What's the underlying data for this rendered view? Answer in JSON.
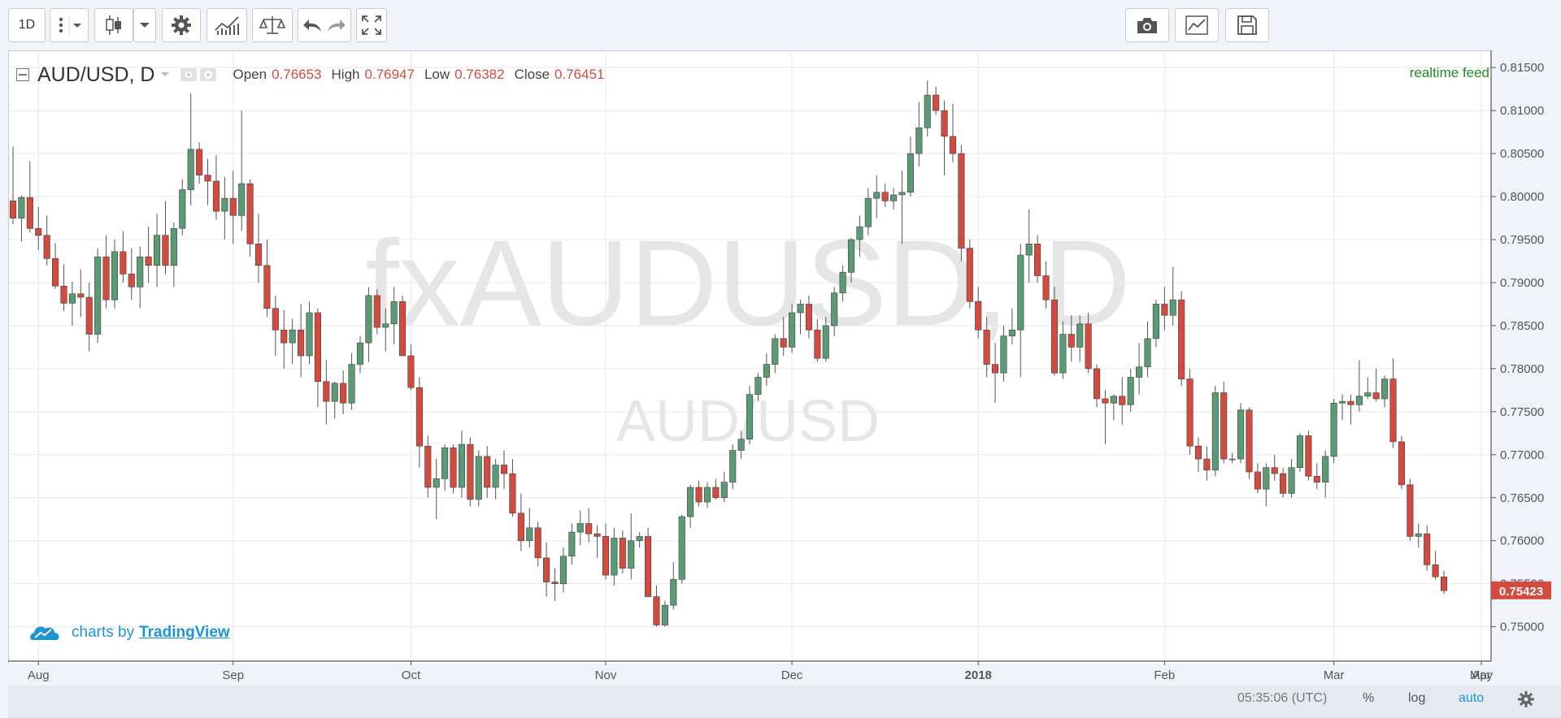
{
  "toolbar": {
    "interval_label": "1D"
  },
  "legend": {
    "symbol": "AUD/USD, D",
    "open_label": "Open",
    "open_value": "0.76653",
    "high_label": "High",
    "high_value": "0.76947",
    "low_label": "Low",
    "low_value": "0.76382",
    "close_label": "Close",
    "close_value": "0.76451"
  },
  "feed_label": "realtime feed",
  "watermark": {
    "line1": "fxAUDUSD, D",
    "line2": "AUD/USD"
  },
  "branding": {
    "prefix": "charts by",
    "link": "TradingView"
  },
  "status_bar": {
    "clock": "05:35:06 (UTC)",
    "percent": "%",
    "log": "log",
    "auto": "auto"
  },
  "colors": {
    "up": "#5b9a74",
    "down": "#d34b3f",
    "watermark": "#e6e6e6",
    "feed": "#1f8f1f",
    "link": "#1e95d3"
  },
  "chart_data": {
    "type": "candlestick",
    "title": "AUD/USD, D",
    "ylim": [
      0.746,
      0.817
    ],
    "y_ticks": [
      "0.75000",
      "0.75500",
      "0.76000",
      "0.76500",
      "0.77000",
      "0.77500",
      "0.78000",
      "0.78500",
      "0.79000",
      "0.79500",
      "0.80000",
      "0.80500",
      "0.81000",
      "0.81500"
    ],
    "x_ticks": [
      "Aug",
      "Sep",
      "Oct",
      "Nov",
      "Dec",
      "2018",
      "Feb",
      "Mar",
      "Apr",
      "May"
    ],
    "last_price": "0.75423",
    "candles": [
      [
        0.7995,
        0.8058,
        0.7968,
        0.7975
      ],
      [
        0.7975,
        0.8001,
        0.7948,
        0.7999
      ],
      [
        0.7999,
        0.8041,
        0.7958,
        0.7963
      ],
      [
        0.7963,
        0.7988,
        0.7938,
        0.7955
      ],
      [
        0.7955,
        0.7978,
        0.792,
        0.7928
      ],
      [
        0.7928,
        0.7946,
        0.7893,
        0.7896
      ],
      [
        0.7896,
        0.7921,
        0.7867,
        0.7876
      ],
      [
        0.7876,
        0.7901,
        0.785,
        0.7887
      ],
      [
        0.7887,
        0.7915,
        0.786,
        0.7883
      ],
      [
        0.7883,
        0.79,
        0.782,
        0.784
      ],
      [
        0.784,
        0.794,
        0.783,
        0.793
      ],
      [
        0.793,
        0.7955,
        0.787,
        0.788
      ],
      [
        0.788,
        0.795,
        0.787,
        0.7936
      ],
      [
        0.7936,
        0.796,
        0.79,
        0.791
      ],
      [
        0.791,
        0.794,
        0.788,
        0.7895
      ],
      [
        0.7895,
        0.7942,
        0.787,
        0.793
      ],
      [
        0.793,
        0.7965,
        0.79,
        0.792
      ],
      [
        0.792,
        0.798,
        0.7895,
        0.7955
      ],
      [
        0.7955,
        0.7995,
        0.791,
        0.792
      ],
      [
        0.792,
        0.797,
        0.7895,
        0.7963
      ],
      [
        0.7963,
        0.802,
        0.7955,
        0.8008
      ],
      [
        0.8008,
        0.812,
        0.799,
        0.8055
      ],
      [
        0.8055,
        0.8063,
        0.8015,
        0.8025
      ],
      [
        0.8025,
        0.8044,
        0.799,
        0.8018
      ],
      [
        0.8018,
        0.8048,
        0.7973,
        0.7983
      ],
      [
        0.7983,
        0.8023,
        0.795,
        0.7998
      ],
      [
        0.7998,
        0.803,
        0.7945,
        0.7978
      ],
      [
        0.7978,
        0.81,
        0.796,
        0.8015
      ],
      [
        0.8015,
        0.802,
        0.793,
        0.7945
      ],
      [
        0.7945,
        0.798,
        0.79,
        0.792
      ],
      [
        0.792,
        0.795,
        0.786,
        0.787
      ],
      [
        0.787,
        0.7885,
        0.7815,
        0.7845
      ],
      [
        0.7845,
        0.7868,
        0.78,
        0.783
      ],
      [
        0.783,
        0.7858,
        0.7805,
        0.7845
      ],
      [
        0.7845,
        0.7875,
        0.779,
        0.7815
      ],
      [
        0.7815,
        0.7878,
        0.7805,
        0.7865
      ],
      [
        0.7865,
        0.787,
        0.7755,
        0.7785
      ],
      [
        0.7785,
        0.781,
        0.7735,
        0.7762
      ],
      [
        0.7762,
        0.7785,
        0.7742,
        0.7783
      ],
      [
        0.7783,
        0.7798,
        0.7747,
        0.776
      ],
      [
        0.776,
        0.7818,
        0.7752,
        0.7805
      ],
      [
        0.7805,
        0.7838,
        0.7795,
        0.783
      ],
      [
        0.783,
        0.7895,
        0.7808,
        0.7885
      ],
      [
        0.7885,
        0.7892,
        0.784,
        0.7848
      ],
      [
        0.7848,
        0.787,
        0.782,
        0.7852
      ],
      [
        0.7852,
        0.7895,
        0.7828,
        0.7878
      ],
      [
        0.7878,
        0.7885,
        0.7815,
        0.7815
      ],
      [
        0.7815,
        0.7828,
        0.7775,
        0.7778
      ],
      [
        0.7778,
        0.779,
        0.7685,
        0.771
      ],
      [
        0.771,
        0.7722,
        0.765,
        0.7662
      ],
      [
        0.7662,
        0.7695,
        0.7625,
        0.7672
      ],
      [
        0.7672,
        0.7712,
        0.7658,
        0.7708
      ],
      [
        0.7708,
        0.7712,
        0.7655,
        0.7662
      ],
      [
        0.7662,
        0.7728,
        0.765,
        0.7712
      ],
      [
        0.7712,
        0.772,
        0.764,
        0.7648
      ],
      [
        0.7648,
        0.7705,
        0.764,
        0.7698
      ],
      [
        0.7698,
        0.771,
        0.765,
        0.7662
      ],
      [
        0.7662,
        0.7695,
        0.7648,
        0.7688
      ],
      [
        0.7688,
        0.7705,
        0.766,
        0.7678
      ],
      [
        0.7678,
        0.7695,
        0.7628,
        0.7632
      ],
      [
        0.7632,
        0.7655,
        0.7588,
        0.76
      ],
      [
        0.76,
        0.7638,
        0.7592,
        0.7615
      ],
      [
        0.7615,
        0.7622,
        0.757,
        0.758
      ],
      [
        0.758,
        0.7598,
        0.7535,
        0.7552
      ],
      [
        0.7552,
        0.7568,
        0.753,
        0.755
      ],
      [
        0.755,
        0.7592,
        0.754,
        0.7582
      ],
      [
        0.7582,
        0.762,
        0.7572,
        0.761
      ],
      [
        0.761,
        0.7635,
        0.7595,
        0.762
      ],
      [
        0.762,
        0.7638,
        0.7598,
        0.7608
      ],
      [
        0.7608,
        0.7618,
        0.758,
        0.7605
      ],
      [
        0.7605,
        0.762,
        0.7555,
        0.756
      ],
      [
        0.756,
        0.7615,
        0.7548,
        0.7603
      ],
      [
        0.7603,
        0.7612,
        0.7562,
        0.7568
      ],
      [
        0.7568,
        0.7632,
        0.7555,
        0.76
      ],
      [
        0.76,
        0.761,
        0.7592,
        0.7605
      ],
      [
        0.7605,
        0.7615,
        0.7535,
        0.7535
      ],
      [
        0.7535,
        0.7548,
        0.75,
        0.7502
      ],
      [
        0.7502,
        0.753,
        0.75,
        0.7525
      ],
      [
        0.7525,
        0.7575,
        0.752,
        0.7555
      ],
      [
        0.7555,
        0.763,
        0.755,
        0.7628
      ],
      [
        0.7628,
        0.7665,
        0.7615,
        0.7662
      ],
      [
        0.7662,
        0.767,
        0.764,
        0.7645
      ],
      [
        0.7645,
        0.7668,
        0.7638,
        0.7662
      ],
      [
        0.7662,
        0.7672,
        0.7648,
        0.765
      ],
      [
        0.765,
        0.768,
        0.7645,
        0.7668
      ],
      [
        0.7668,
        0.7712,
        0.766,
        0.7705
      ],
      [
        0.7705,
        0.7728,
        0.7695,
        0.7718
      ],
      [
        0.7718,
        0.778,
        0.7712,
        0.777
      ],
      [
        0.777,
        0.7795,
        0.7762,
        0.779
      ],
      [
        0.779,
        0.7818,
        0.778,
        0.7805
      ],
      [
        0.7805,
        0.784,
        0.7795,
        0.7835
      ],
      [
        0.7835,
        0.786,
        0.7815,
        0.7825
      ],
      [
        0.7825,
        0.7875,
        0.7818,
        0.7865
      ],
      [
        0.7865,
        0.788,
        0.784,
        0.7875
      ],
      [
        0.7875,
        0.7885,
        0.7835,
        0.7845
      ],
      [
        0.7845,
        0.7858,
        0.7808,
        0.7812
      ],
      [
        0.7812,
        0.786,
        0.7808,
        0.785
      ],
      [
        0.785,
        0.7895,
        0.7838,
        0.7888
      ],
      [
        0.7888,
        0.792,
        0.7878,
        0.7912
      ],
      [
        0.7912,
        0.7952,
        0.79,
        0.795
      ],
      [
        0.795,
        0.7978,
        0.793,
        0.7965
      ],
      [
        0.7965,
        0.801,
        0.7955,
        0.7998
      ],
      [
        0.7998,
        0.8025,
        0.7975,
        0.8005
      ],
      [
        0.8005,
        0.8015,
        0.7988,
        0.7995
      ],
      [
        0.7995,
        0.801,
        0.7985,
        0.8002
      ],
      [
        0.8002,
        0.803,
        0.7945,
        0.8005
      ],
      [
        0.8005,
        0.807,
        0.8,
        0.805
      ],
      [
        0.805,
        0.811,
        0.8035,
        0.808
      ],
      [
        0.808,
        0.8135,
        0.807,
        0.8118
      ],
      [
        0.8118,
        0.8128,
        0.8095,
        0.81
      ],
      [
        0.81,
        0.8112,
        0.8025,
        0.807
      ],
      [
        0.807,
        0.8108,
        0.804,
        0.805
      ],
      [
        0.805,
        0.806,
        0.7925,
        0.794
      ],
      [
        0.794,
        0.795,
        0.787,
        0.7878
      ],
      [
        0.7878,
        0.7895,
        0.7835,
        0.7845
      ],
      [
        0.7845,
        0.786,
        0.779,
        0.7805
      ],
      [
        0.7805,
        0.783,
        0.776,
        0.7795
      ],
      [
        0.7795,
        0.785,
        0.7785,
        0.7838
      ],
      [
        0.7838,
        0.787,
        0.7828,
        0.7845
      ],
      [
        0.7845,
        0.7945,
        0.779,
        0.7932
      ],
      [
        0.7932,
        0.7985,
        0.79,
        0.7945
      ],
      [
        0.7945,
        0.7955,
        0.79,
        0.7908
      ],
      [
        0.7908,
        0.7925,
        0.787,
        0.788
      ],
      [
        0.788,
        0.7895,
        0.7792,
        0.7795
      ],
      [
        0.7795,
        0.7855,
        0.7788,
        0.784
      ],
      [
        0.784,
        0.7862,
        0.7808,
        0.7825
      ],
      [
        0.7825,
        0.7862,
        0.7808,
        0.7852
      ],
      [
        0.7852,
        0.7865,
        0.7795,
        0.78
      ],
      [
        0.78,
        0.7805,
        0.7755,
        0.7765
      ],
      [
        0.7765,
        0.7775,
        0.7712,
        0.776
      ],
      [
        0.776,
        0.777,
        0.774,
        0.7768
      ],
      [
        0.7768,
        0.779,
        0.7735,
        0.7758
      ],
      [
        0.7758,
        0.78,
        0.775,
        0.779
      ],
      [
        0.779,
        0.783,
        0.777,
        0.7802
      ],
      [
        0.7802,
        0.7855,
        0.779,
        0.7835
      ],
      [
        0.7835,
        0.788,
        0.7825,
        0.7875
      ],
      [
        0.7875,
        0.7895,
        0.7845,
        0.7862
      ],
      [
        0.7862,
        0.7918,
        0.785,
        0.788
      ],
      [
        0.788,
        0.789,
        0.778,
        0.7788
      ],
      [
        0.7788,
        0.78,
        0.77,
        0.771
      ],
      [
        0.771,
        0.772,
        0.768,
        0.7695
      ],
      [
        0.7695,
        0.771,
        0.767,
        0.7682
      ],
      [
        0.7682,
        0.778,
        0.7675,
        0.7772
      ],
      [
        0.7772,
        0.7785,
        0.769,
        0.7695
      ],
      [
        0.7695,
        0.7702,
        0.769,
        0.7695
      ],
      [
        0.7695,
        0.776,
        0.769,
        0.7752
      ],
      [
        0.7752,
        0.7755,
        0.7672,
        0.768
      ],
      [
        0.768,
        0.769,
        0.7655,
        0.766
      ],
      [
        0.766,
        0.769,
        0.764,
        0.7685
      ],
      [
        0.7685,
        0.77,
        0.767,
        0.7678
      ],
      [
        0.7678,
        0.7685,
        0.765,
        0.7655
      ],
      [
        0.7655,
        0.7695,
        0.765,
        0.7685
      ],
      [
        0.7685,
        0.7725,
        0.768,
        0.7722
      ],
      [
        0.7722,
        0.7728,
        0.767,
        0.7675
      ],
      [
        0.7675,
        0.769,
        0.766,
        0.7668
      ],
      [
        0.7668,
        0.7705,
        0.765,
        0.7698
      ],
      [
        0.7698,
        0.7765,
        0.769,
        0.776
      ],
      [
        0.776,
        0.777,
        0.774,
        0.7762
      ],
      [
        0.7762,
        0.777,
        0.7735,
        0.7758
      ],
      [
        0.7758,
        0.781,
        0.775,
        0.7768
      ],
      [
        0.7768,
        0.779,
        0.7765,
        0.7772
      ],
      [
        0.7772,
        0.78,
        0.7762,
        0.7765
      ],
      [
        0.7765,
        0.7792,
        0.7755,
        0.7788
      ],
      [
        0.7788,
        0.7812,
        0.7708,
        0.7715
      ],
      [
        0.7715,
        0.7722,
        0.766,
        0.7665
      ],
      [
        0.7665,
        0.7672,
        0.76,
        0.7605
      ],
      [
        0.7605,
        0.762,
        0.7592,
        0.7608
      ],
      [
        0.7608,
        0.7618,
        0.7565,
        0.7572
      ],
      [
        0.7572,
        0.7588,
        0.7555,
        0.7558
      ],
      [
        0.7558,
        0.7565,
        0.7538,
        0.7542
      ]
    ]
  }
}
